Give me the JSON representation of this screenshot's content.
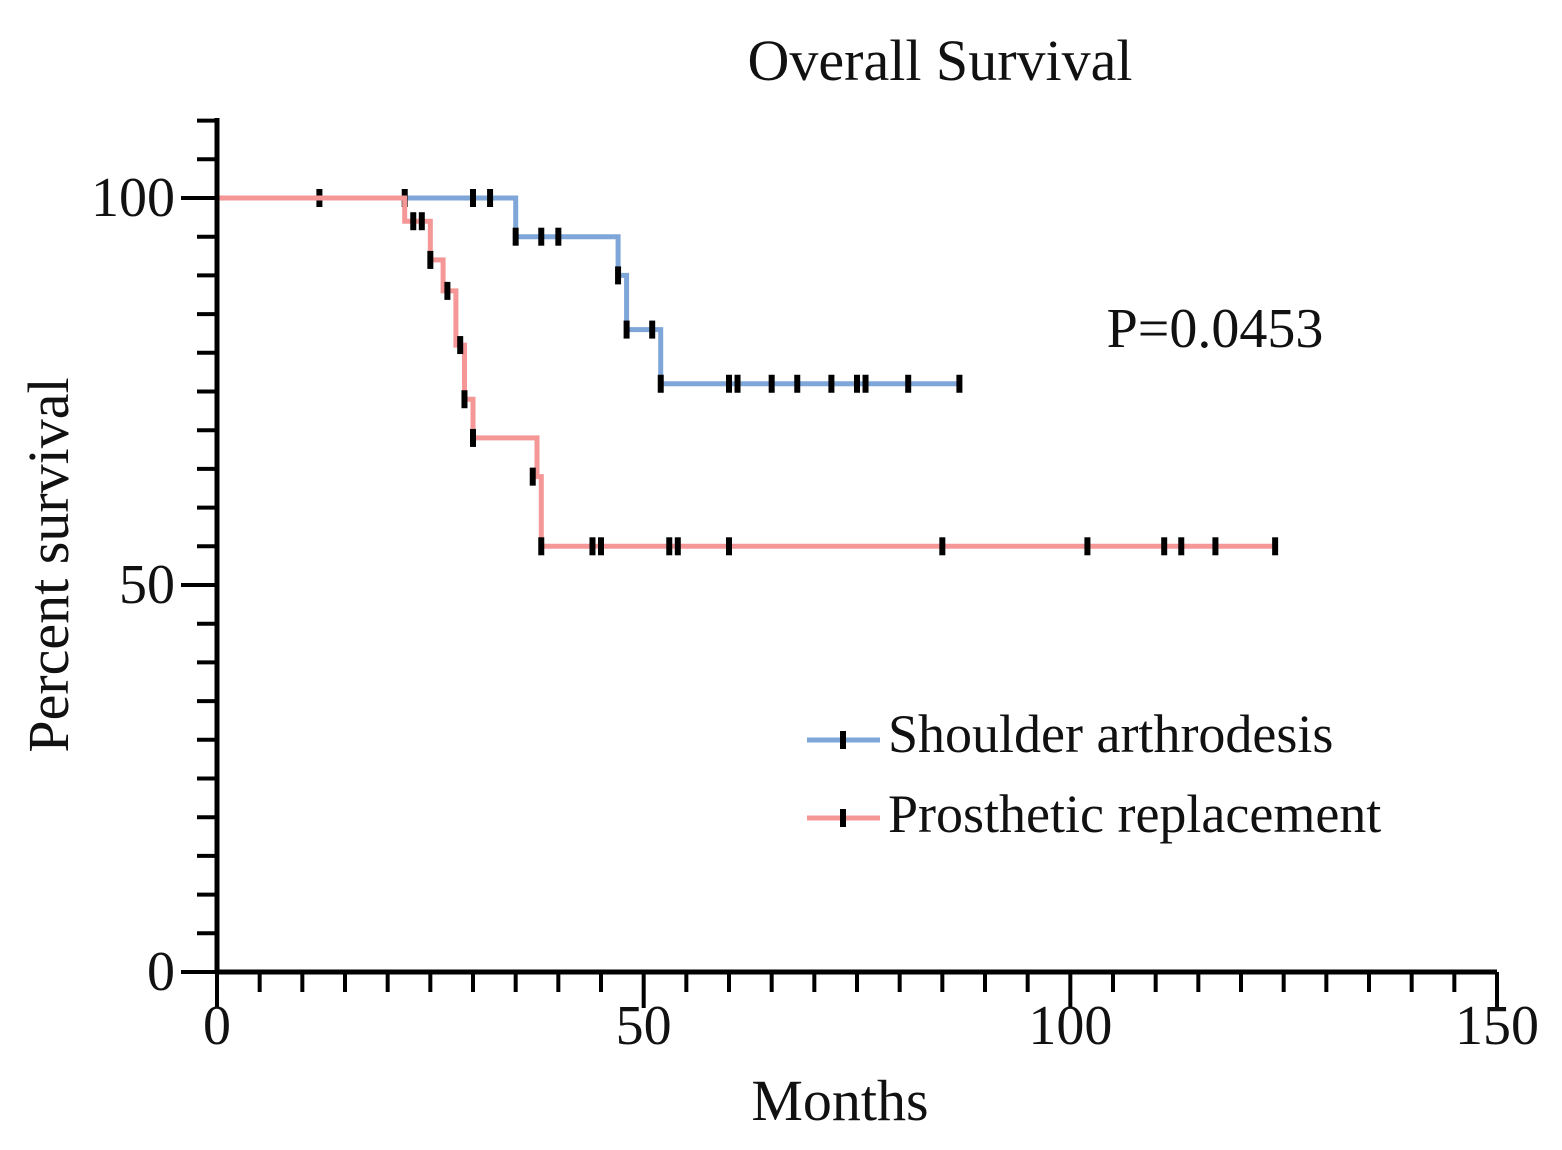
{
  "chart_data": {
    "type": "line",
    "subtype": "kaplan-meier",
    "title": "Overall Survival",
    "xlabel": "Months",
    "ylabel": "Percent survival",
    "xlim": [
      0,
      150
    ],
    "ylim": [
      0,
      110
    ],
    "xticks": [
      0,
      50,
      100,
      150
    ],
    "yticks": [
      0,
      50,
      100
    ],
    "annotation": "P=0.0453",
    "legend_position": "bottom-right",
    "series": [
      {
        "name": "Shoulder arthrodesis",
        "color": "#7ea6d8",
        "steps": [
          [
            0,
            100
          ],
          [
            35,
            100
          ],
          [
            35,
            95
          ],
          [
            47,
            95
          ],
          [
            47,
            90
          ],
          [
            48,
            90
          ],
          [
            48,
            83
          ],
          [
            52,
            83
          ],
          [
            52,
            76
          ],
          [
            87,
            76
          ]
        ],
        "censored": [
          [
            12,
            100
          ],
          [
            22,
            100
          ],
          [
            30,
            100
          ],
          [
            32,
            100
          ],
          [
            35,
            95
          ],
          [
            38,
            95
          ],
          [
            40,
            95
          ],
          [
            47,
            90
          ],
          [
            48,
            83
          ],
          [
            51,
            83
          ],
          [
            52,
            76
          ],
          [
            60,
            76
          ],
          [
            61,
            76
          ],
          [
            65,
            76
          ],
          [
            68,
            76
          ],
          [
            72,
            76
          ],
          [
            75,
            76
          ],
          [
            76,
            76
          ],
          [
            81,
            76
          ],
          [
            87,
            76
          ]
        ]
      },
      {
        "name": "Prosthetic replacement",
        "color": "#f59797",
        "steps": [
          [
            0,
            100
          ],
          [
            22,
            100
          ],
          [
            22,
            97
          ],
          [
            25,
            97
          ],
          [
            25,
            92
          ],
          [
            26.5,
            92
          ],
          [
            26.5,
            88
          ],
          [
            28,
            88
          ],
          [
            28,
            81
          ],
          [
            29,
            81
          ],
          [
            29,
            74
          ],
          [
            30,
            74
          ],
          [
            30,
            69
          ],
          [
            37.5,
            69
          ],
          [
            37.5,
            64
          ],
          [
            38,
            64
          ],
          [
            38,
            55
          ],
          [
            124,
            55
          ]
        ],
        "censored": [
          [
            23,
            97
          ],
          [
            24,
            97
          ],
          [
            25,
            92
          ],
          [
            27,
            88
          ],
          [
            28.5,
            81
          ],
          [
            29,
            74
          ],
          [
            30,
            69
          ],
          [
            37,
            64
          ],
          [
            38,
            55
          ],
          [
            44,
            55
          ],
          [
            45,
            55
          ],
          [
            53,
            55
          ],
          [
            54,
            55
          ],
          [
            60,
            55
          ],
          [
            85,
            55
          ],
          [
            102,
            55
          ],
          [
            111,
            55
          ],
          [
            113,
            55
          ],
          [
            117,
            55
          ],
          [
            124,
            55
          ]
        ]
      }
    ]
  }
}
